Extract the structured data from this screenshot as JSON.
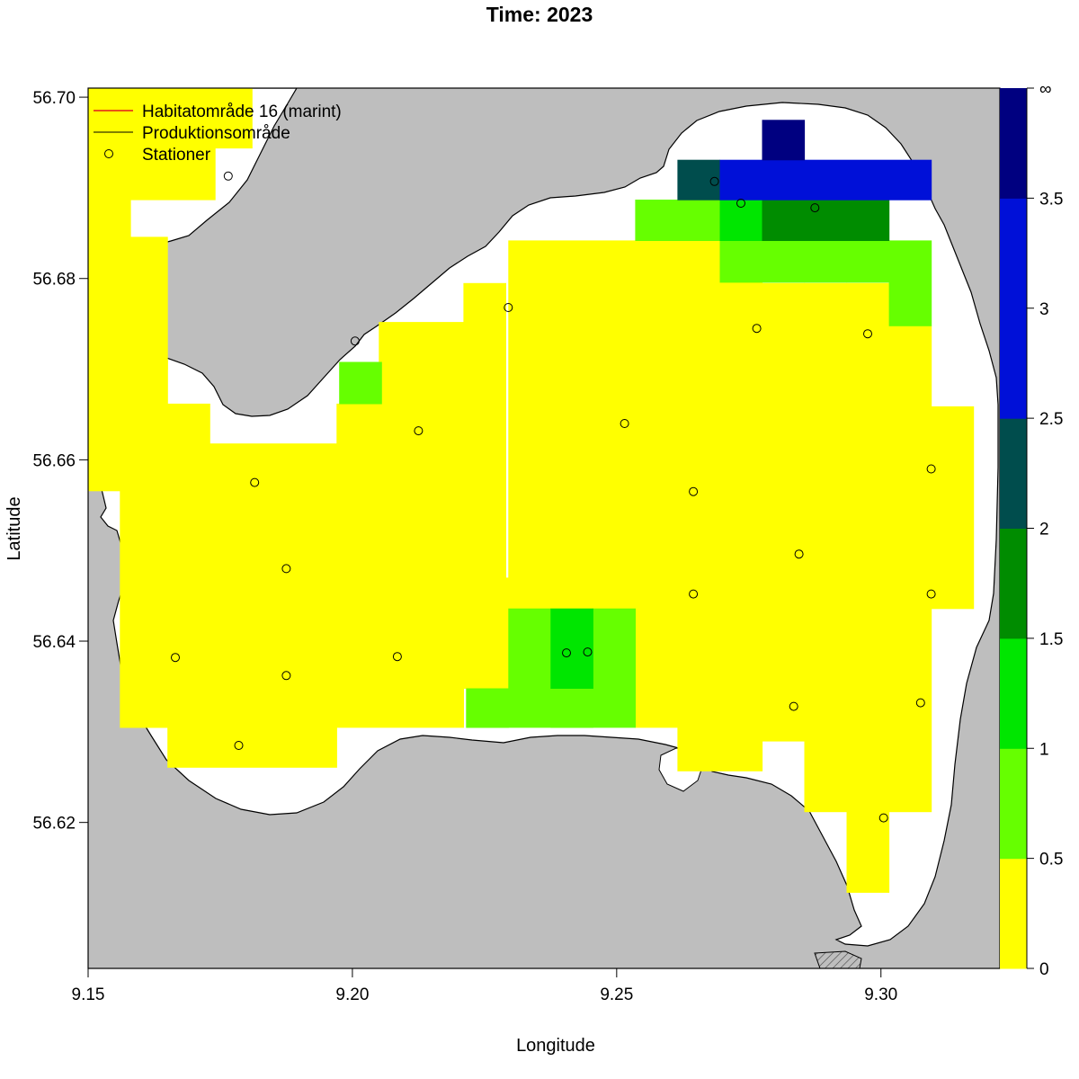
{
  "title": "Time: 2023",
  "xlabel": "Longitude",
  "ylabel": "Latitude",
  "legend": {
    "habitat": "Habitatområde 16 (marint)",
    "produktion": "Produktionsområde",
    "stationer": "Stationer",
    "habitat_color": "#e31a1c",
    "produktion_color": "#000000"
  },
  "colors": {
    "land": "#bebebe",
    "water": "#ffffff",
    "hatch": "#555555"
  },
  "chart_data": {
    "type": "heatmap",
    "xlim": [
      9.15,
      9.3225
    ],
    "ylim": [
      56.6039,
      56.701
    ],
    "x_ticks": [
      {
        "value": 9.15,
        "label": "9.15"
      },
      {
        "value": 9.2,
        "label": "9.20"
      },
      {
        "value": 9.25,
        "label": "9.25"
      },
      {
        "value": 9.3,
        "label": "9.30"
      }
    ],
    "y_ticks": [
      {
        "value": 56.62,
        "label": "56.62"
      },
      {
        "value": 56.64,
        "label": "56.64"
      },
      {
        "value": 56.66,
        "label": "56.66"
      },
      {
        "value": 56.68,
        "label": "56.68"
      },
      {
        "value": 56.7,
        "label": "56.70"
      }
    ],
    "color_scale": {
      "breaks": [
        "0",
        "0.5",
        "1",
        "1.5",
        "2",
        "2.5",
        "3",
        "3.5",
        "∞"
      ],
      "colors": [
        "#ffff00",
        "#66ff00",
        "#00e600",
        "#008c00",
        "#004d4d",
        "#0010d8",
        "#0010d8",
        "#000080"
      ]
    },
    "cells": [
      {
        "lon": [
          9.15,
          9.158
        ],
        "lat": [
          56.6646,
          56.701
        ],
        "class": 0
      },
      {
        "lon": [
          9.158,
          9.165
        ],
        "lat": [
          56.67,
          56.6846
        ],
        "class": 0
      },
      {
        "lon": [
          9.158,
          9.174
        ],
        "lat": [
          56.6887,
          56.701
        ],
        "class": 0
      },
      {
        "lon": [
          9.174,
          9.181
        ],
        "lat": [
          56.6944,
          56.701
        ],
        "class": 0
      },
      {
        "lon": [
          9.15,
          9.165
        ],
        "lat": [
          56.6595,
          56.671
        ],
        "class": 0
      },
      {
        "lon": [
          9.15,
          9.173
        ],
        "lat": [
          56.6566,
          56.6662
        ],
        "class": 0
      },
      {
        "lon": [
          9.156,
          9.173
        ],
        "lat": [
          56.6305,
          56.6566
        ],
        "class": 0
      },
      {
        "lon": [
          9.165,
          9.197
        ],
        "lat": [
          56.6261,
          56.6305
        ],
        "class": 0
      },
      {
        "lon": [
          9.173,
          9.197
        ],
        "lat": [
          56.6305,
          56.6618
        ],
        "class": 0
      },
      {
        "lon": [
          9.197,
          9.221
        ],
        "lat": [
          56.6305,
          56.6662
        ],
        "class": 0
      },
      {
        "lon": [
          9.205,
          9.221
        ],
        "lat": [
          56.6662,
          56.6752
        ],
        "class": 0
      },
      {
        "lon": [
          9.221,
          9.229
        ],
        "lat": [
          56.647,
          56.6795
        ],
        "class": 0
      },
      {
        "lon": [
          9.221,
          9.2295
        ],
        "lat": [
          56.6348,
          56.647
        ],
        "class": 0
      },
      {
        "lon": [
          9.2295,
          9.2535
        ],
        "lat": [
          56.6436,
          56.6842
        ],
        "class": 0
      },
      {
        "lon": [
          9.2535,
          9.2615
        ],
        "lat": [
          56.6305,
          56.6842
        ],
        "class": 0
      },
      {
        "lon": [
          9.2615,
          9.2775
        ],
        "lat": [
          56.6257,
          56.6842
        ],
        "class": 0
      },
      {
        "lon": [
          9.2775,
          9.2855
        ],
        "lat": [
          56.629,
          56.6795
        ],
        "class": 0
      },
      {
        "lon": [
          9.2855,
          9.2935
        ],
        "lat": [
          56.6212,
          56.6795
        ],
        "class": 0
      },
      {
        "lon": [
          9.2935,
          9.3015
        ],
        "lat": [
          56.6123,
          56.6795
        ],
        "class": 0
      },
      {
        "lon": [
          9.3015,
          9.3095
        ],
        "lat": [
          56.6212,
          56.6748
        ],
        "class": 0
      },
      {
        "lon": [
          9.3095,
          9.3175
        ],
        "lat": [
          56.6436,
          56.6659
        ],
        "class": 0
      },
      {
        "lon": [
          9.1975,
          9.2055
        ],
        "lat": [
          56.6662,
          56.6708
        ],
        "class": 1
      },
      {
        "lon": [
          9.2215,
          9.2295
        ],
        "lat": [
          56.6305,
          56.6348
        ],
        "class": 1
      },
      {
        "lon": [
          9.2295,
          9.2375
        ],
        "lat": [
          56.6305,
          56.6436
        ],
        "class": 1
      },
      {
        "lon": [
          9.2455,
          9.2535
        ],
        "lat": [
          56.6305,
          56.6436
        ],
        "class": 1
      },
      {
        "lon": [
          9.2375,
          9.2455
        ],
        "lat": [
          56.6305,
          56.6348
        ],
        "class": 1
      },
      {
        "lon": [
          9.2535,
          9.2695
        ],
        "lat": [
          56.6842,
          56.6887
        ],
        "class": 1
      },
      {
        "lon": [
          9.2695,
          9.3015
        ],
        "lat": [
          56.6796,
          56.6842
        ],
        "class": 1
      },
      {
        "lon": [
          9.3015,
          9.3095
        ],
        "lat": [
          56.6748,
          56.6842
        ],
        "class": 1
      },
      {
        "lon": [
          9.2375,
          9.2455
        ],
        "lat": [
          56.6348,
          56.6436
        ],
        "class": 2
      },
      {
        "lon": [
          9.2695,
          9.2775
        ],
        "lat": [
          56.6842,
          56.6887
        ],
        "class": 2
      },
      {
        "lon": [
          9.2775,
          9.3015
        ],
        "lat": [
          56.6842,
          56.6887
        ],
        "class": 3
      },
      {
        "lon": [
          9.2615,
          9.2695
        ],
        "lat": [
          56.6887,
          56.6931
        ],
        "class": 4
      },
      {
        "lon": [
          9.2695,
          9.3095
        ],
        "lat": [
          56.6887,
          56.6931
        ],
        "class": 5
      },
      {
        "lon": [
          9.2775,
          9.2855
        ],
        "lat": [
          56.6931,
          56.6975
        ],
        "class": 7
      }
    ],
    "stations": [
      {
        "lon": 9.1765,
        "lat": 56.6913
      },
      {
        "lon": 9.2005,
        "lat": 56.6731
      },
      {
        "lon": 9.2295,
        "lat": 56.6768
      },
      {
        "lon": 9.2685,
        "lat": 56.6907
      },
      {
        "lon": 9.2735,
        "lat": 56.6883
      },
      {
        "lon": 9.2875,
        "lat": 56.6878
      },
      {
        "lon": 9.2765,
        "lat": 56.6745
      },
      {
        "lon": 9.2975,
        "lat": 56.6739
      },
      {
        "lon": 9.2125,
        "lat": 56.6632
      },
      {
        "lon": 9.2515,
        "lat": 56.664
      },
      {
        "lon": 9.1815,
        "lat": 56.6575
      },
      {
        "lon": 9.2645,
        "lat": 56.6565
      },
      {
        "lon": 9.3095,
        "lat": 56.659
      },
      {
        "lon": 9.1875,
        "lat": 56.648
      },
      {
        "lon": 9.2845,
        "lat": 56.6496
      },
      {
        "lon": 9.2645,
        "lat": 56.6452
      },
      {
        "lon": 9.3095,
        "lat": 56.6452
      },
      {
        "lon": 9.1665,
        "lat": 56.6382
      },
      {
        "lon": 9.2085,
        "lat": 56.6383
      },
      {
        "lon": 9.2405,
        "lat": 56.6387
      },
      {
        "lon": 9.2445,
        "lat": 56.6388
      },
      {
        "lon": 9.1875,
        "lat": 56.6362
      },
      {
        "lon": 9.2835,
        "lat": 56.6328
      },
      {
        "lon": 9.3075,
        "lat": 56.6332
      },
      {
        "lon": 9.1785,
        "lat": 56.6285
      },
      {
        "lon": 9.3005,
        "lat": 56.6205
      }
    ]
  }
}
